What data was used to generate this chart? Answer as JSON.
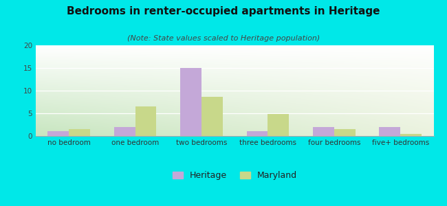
{
  "title": "Bedrooms in renter-occupied apartments in Heritage",
  "subtitle": "(Note: State values scaled to Heritage population)",
  "categories": [
    "no bedroom",
    "one bedroom",
    "two bedrooms",
    "three bedrooms",
    "four bedrooms",
    "five+ bedrooms"
  ],
  "heritage_values": [
    1,
    2,
    15,
    1,
    2,
    2
  ],
  "maryland_values": [
    1.5,
    6.5,
    8.7,
    4.8,
    1.5,
    0.5
  ],
  "heritage_color": "#c4a8d8",
  "maryland_color": "#c8d88a",
  "background_outer": "#00e8e8",
  "bg_top": "#ffffff",
  "bg_bottom_left": "#c8e8c0",
  "bg_bottom_right": "#e8f0e0",
  "ylim": [
    0,
    20
  ],
  "yticks": [
    0,
    5,
    10,
    15,
    20
  ],
  "bar_width": 0.32,
  "title_fontsize": 11,
  "subtitle_fontsize": 8,
  "tick_fontsize": 7.5,
  "legend_fontsize": 9
}
